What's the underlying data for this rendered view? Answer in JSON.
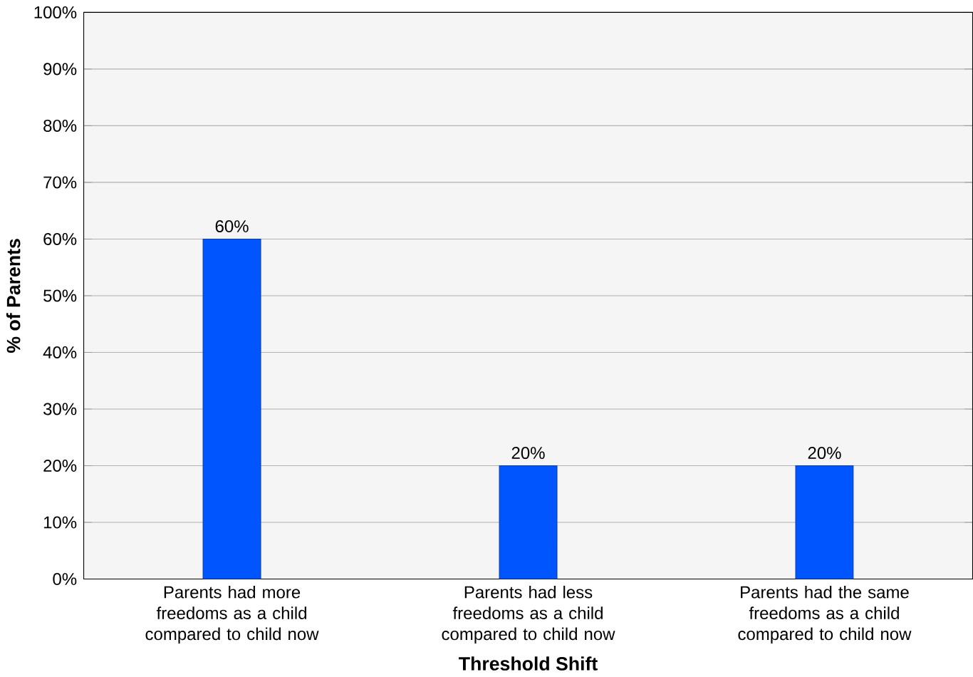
{
  "chart_data": {
    "type": "bar",
    "xlabel": "Threshold Shift",
    "ylabel": "% of Parents",
    "categories": [
      "Parents had more freedoms as a child compared to child now",
      "Parents had less freedoms as a child compared to child now",
      "Parents had the same freedoms as a child compared to child now"
    ],
    "values": [
      60,
      20,
      20
    ],
    "color": "#0055ff",
    "value_labels": [
      "60%",
      "20%",
      "20%"
    ],
    "ylim": [
      0,
      100
    ],
    "yticks": [
      {
        "value": 0,
        "label": "0%"
      },
      {
        "value": 10,
        "label": "10%"
      },
      {
        "value": 20,
        "label": "20%"
      },
      {
        "value": 30,
        "label": "30%"
      },
      {
        "value": 40,
        "label": "40%"
      },
      {
        "value": 50,
        "label": "50%"
      },
      {
        "value": 60,
        "label": "60%"
      },
      {
        "value": 70,
        "label": "70%"
      },
      {
        "value": 80,
        "label": "80%"
      },
      {
        "value": 90,
        "label": "90%"
      },
      {
        "value": 100,
        "label": "100%"
      }
    ],
    "grid": "y"
  }
}
